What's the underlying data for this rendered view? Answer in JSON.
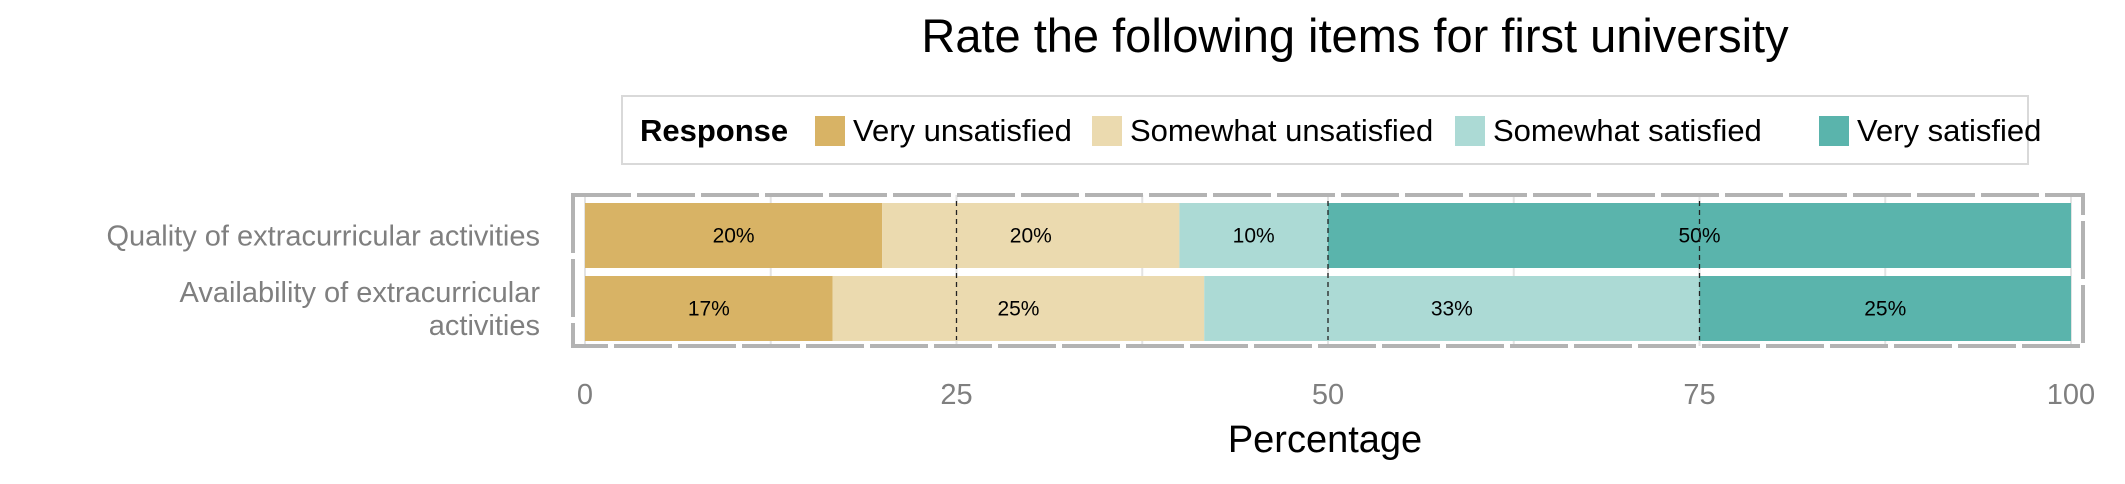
{
  "chart_data": {
    "type": "bar",
    "orientation": "horizontal",
    "stacked": true,
    "title": "Rate the following items for first university",
    "xlabel": "Percentage",
    "ylabel": "",
    "xlim": [
      0,
      100
    ],
    "xticks": [
      0,
      25,
      50,
      75,
      100
    ],
    "xtick_labels": [
      "0",
      "25",
      "50",
      "75",
      "100"
    ],
    "grid": true,
    "legend_position": "top",
    "legend_title": "Response",
    "categories": [
      [
        "Quality of extracurricular activities"
      ],
      [
        "Availability of extracurricular",
        "activities"
      ]
    ],
    "series": [
      {
        "name": "Very unsatisfied",
        "color": "#d8b365",
        "values": [
          20,
          16.67
        ],
        "labels": [
          "20%",
          "17%"
        ]
      },
      {
        "name": "Somewhat unsatisfied",
        "color": "#ebdaaf",
        "values": [
          20,
          25
        ],
        "labels": [
          "20%",
          "25%"
        ]
      },
      {
        "name": "Somewhat satisfied",
        "color": "#acdad5",
        "values": [
          10,
          33.33
        ],
        "labels": [
          "10%",
          "33%"
        ]
      },
      {
        "name": "Very satisfied",
        "color": "#5ab4ac",
        "values": [
          50,
          25
        ],
        "labels": [
          "50%",
          "25%"
        ]
      }
    ]
  }
}
